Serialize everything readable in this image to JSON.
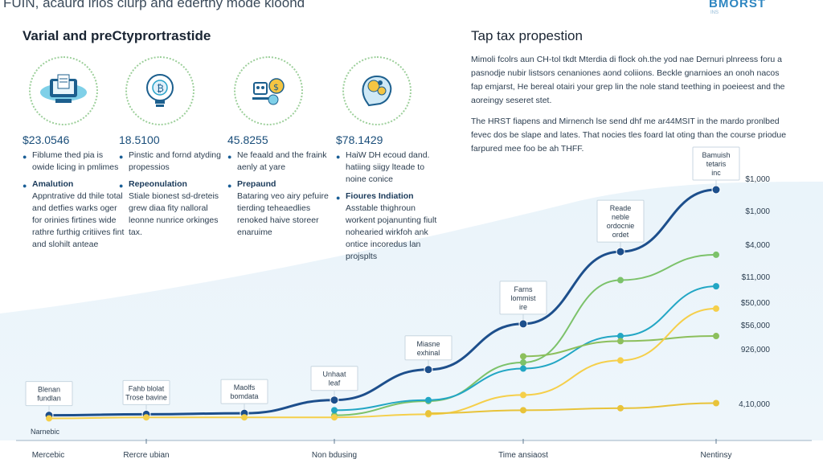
{
  "header": {
    "top_title": "FUIN, acaurd lrios clurp and éderthy mode kioond",
    "brand": "BMORST",
    "brand_sub": "INS",
    "left_heading": "Varial and preCtyprortrastide",
    "right_heading": "Tap tax propestion"
  },
  "paragraphs": {
    "p1": "Mimoli fcolrs aun CH-tol tkdt Mterdia di flock oh.the yod nae Dernuri plnreess foru a pasnodje nubir listsors cenaniones aond coliions. Beckle gnarnioes an onoh nacos fap emjarst, He bereal otairi your grep lin the nole stand teething in poeieest and the aoreingy seseret stet.",
    "p2": "The HRST fiapens and Mirnench lse send dhf me ar44MSIT in the mardo pronlbed fevec dos be slape and lates. That nocies tles foard lat oting than the course priodue farpured mee foo be ah THFF."
  },
  "columns": [
    {
      "icon": "monitor-document-icon",
      "stat": "$23.0546",
      "bullet_top": "Fiblume thed pia is owide licing in pmlimes",
      "bullet_bold": "Amalution",
      "desc": "Appntrative dd thile total and detfies warks oger for orinies firtines wide rathre furthig critiives fint and slohilt anteae"
    },
    {
      "icon": "bitcoin-lightbulb-icon",
      "stat": "18.5100",
      "bullet_top": "Pinstic and fornd atyding propessios",
      "bullet_bold": "Repeonulation",
      "desc": "Stiale bionest sd-dreteis grew diaa fity nalloral leonne nunrice orkinges tax."
    },
    {
      "icon": "robot-coins-icon",
      "stat": "45.8255",
      "bullet_top": "Ne feaald and the fraink aenly at yare",
      "bullet_bold": "Prepaund",
      "desc": "Bataring veo airy pefuire tierding teheaedlies renoked haive storeer enaruime"
    },
    {
      "icon": "ai-head-icon",
      "stat": "$78.1429",
      "bullet_top": "HaiW DH ecoud dand. hatiing siigy lteade to noine conice",
      "bullet_bold": "Fioures Indiation",
      "desc": "Asstable thighroun workent pojanunting fiult nohearied wirkfoh ank ontice incoredus lan projsplts"
    }
  ],
  "chart_data": {
    "type": "line",
    "x_labels": [
      "Mercebic",
      "Rercre ubian",
      "Non bdusing",
      "Time ansiaost",
      "Nentinsy"
    ],
    "y_tick_labels": [
      "$1,000",
      "$1,000",
      "$4,000",
      "$11,000",
      "$50,000",
      "$56,000",
      "926,000",
      "4,10,000"
    ],
    "series": [
      {
        "name": "Main",
        "color": "#1d4f8c",
        "points": [
          [
            0,
            5
          ],
          [
            1,
            6
          ],
          [
            2,
            7
          ],
          [
            3,
            20
          ],
          [
            4,
            50
          ],
          [
            5,
            95
          ],
          [
            6,
            166
          ],
          [
            7,
            227
          ]
        ]
      },
      {
        "name": "Green",
        "color": "#7cc26a",
        "points": [
          [
            3,
            5
          ],
          [
            4,
            19
          ],
          [
            5,
            57
          ],
          [
            6,
            138
          ],
          [
            7,
            163
          ]
        ]
      },
      {
        "name": "Teal",
        "color": "#22a6c4",
        "points": [
          [
            3,
            10
          ],
          [
            4,
            20
          ],
          [
            5,
            51
          ],
          [
            6,
            83
          ],
          [
            7,
            132
          ]
        ]
      },
      {
        "name": "Lime",
        "color": "#8cbf5c",
        "points": [
          [
            5,
            63
          ],
          [
            6,
            78
          ],
          [
            7,
            83
          ]
        ]
      },
      {
        "name": "Yellow",
        "color": "#f5cf4a",
        "points": [
          [
            0,
            2
          ],
          [
            1,
            3
          ],
          [
            2,
            3
          ],
          [
            3,
            3
          ],
          [
            4,
            6
          ],
          [
            5,
            25
          ],
          [
            6,
            59
          ],
          [
            7,
            110
          ]
        ]
      },
      {
        "name": "Gold",
        "color": "#e8c33a",
        "points": [
          [
            4,
            7
          ],
          [
            5,
            10
          ],
          [
            6,
            12
          ],
          [
            7,
            17
          ]
        ]
      }
    ],
    "callouts": [
      {
        "lines": [
          "Blenan",
          "fundlan"
        ]
      },
      {
        "lines": [
          "Fahb blolat",
          "Trose bavine"
        ]
      },
      {
        "lines": [
          "Maolfs",
          "bomdata"
        ]
      },
      {
        "lines": [
          "Unhaat",
          "leaf"
        ]
      },
      {
        "lines": [
          "Miasne",
          "exhinal"
        ]
      },
      {
        "lines": [
          "Farns",
          "lommist",
          "ire"
        ]
      },
      {
        "lines": [
          "Reade",
          "neble",
          "ordocnie",
          "ordet"
        ]
      },
      {
        "lines": [
          "Bamuish",
          "tetaris",
          "inc"
        ]
      }
    ],
    "left_caption": "Narnebic"
  }
}
